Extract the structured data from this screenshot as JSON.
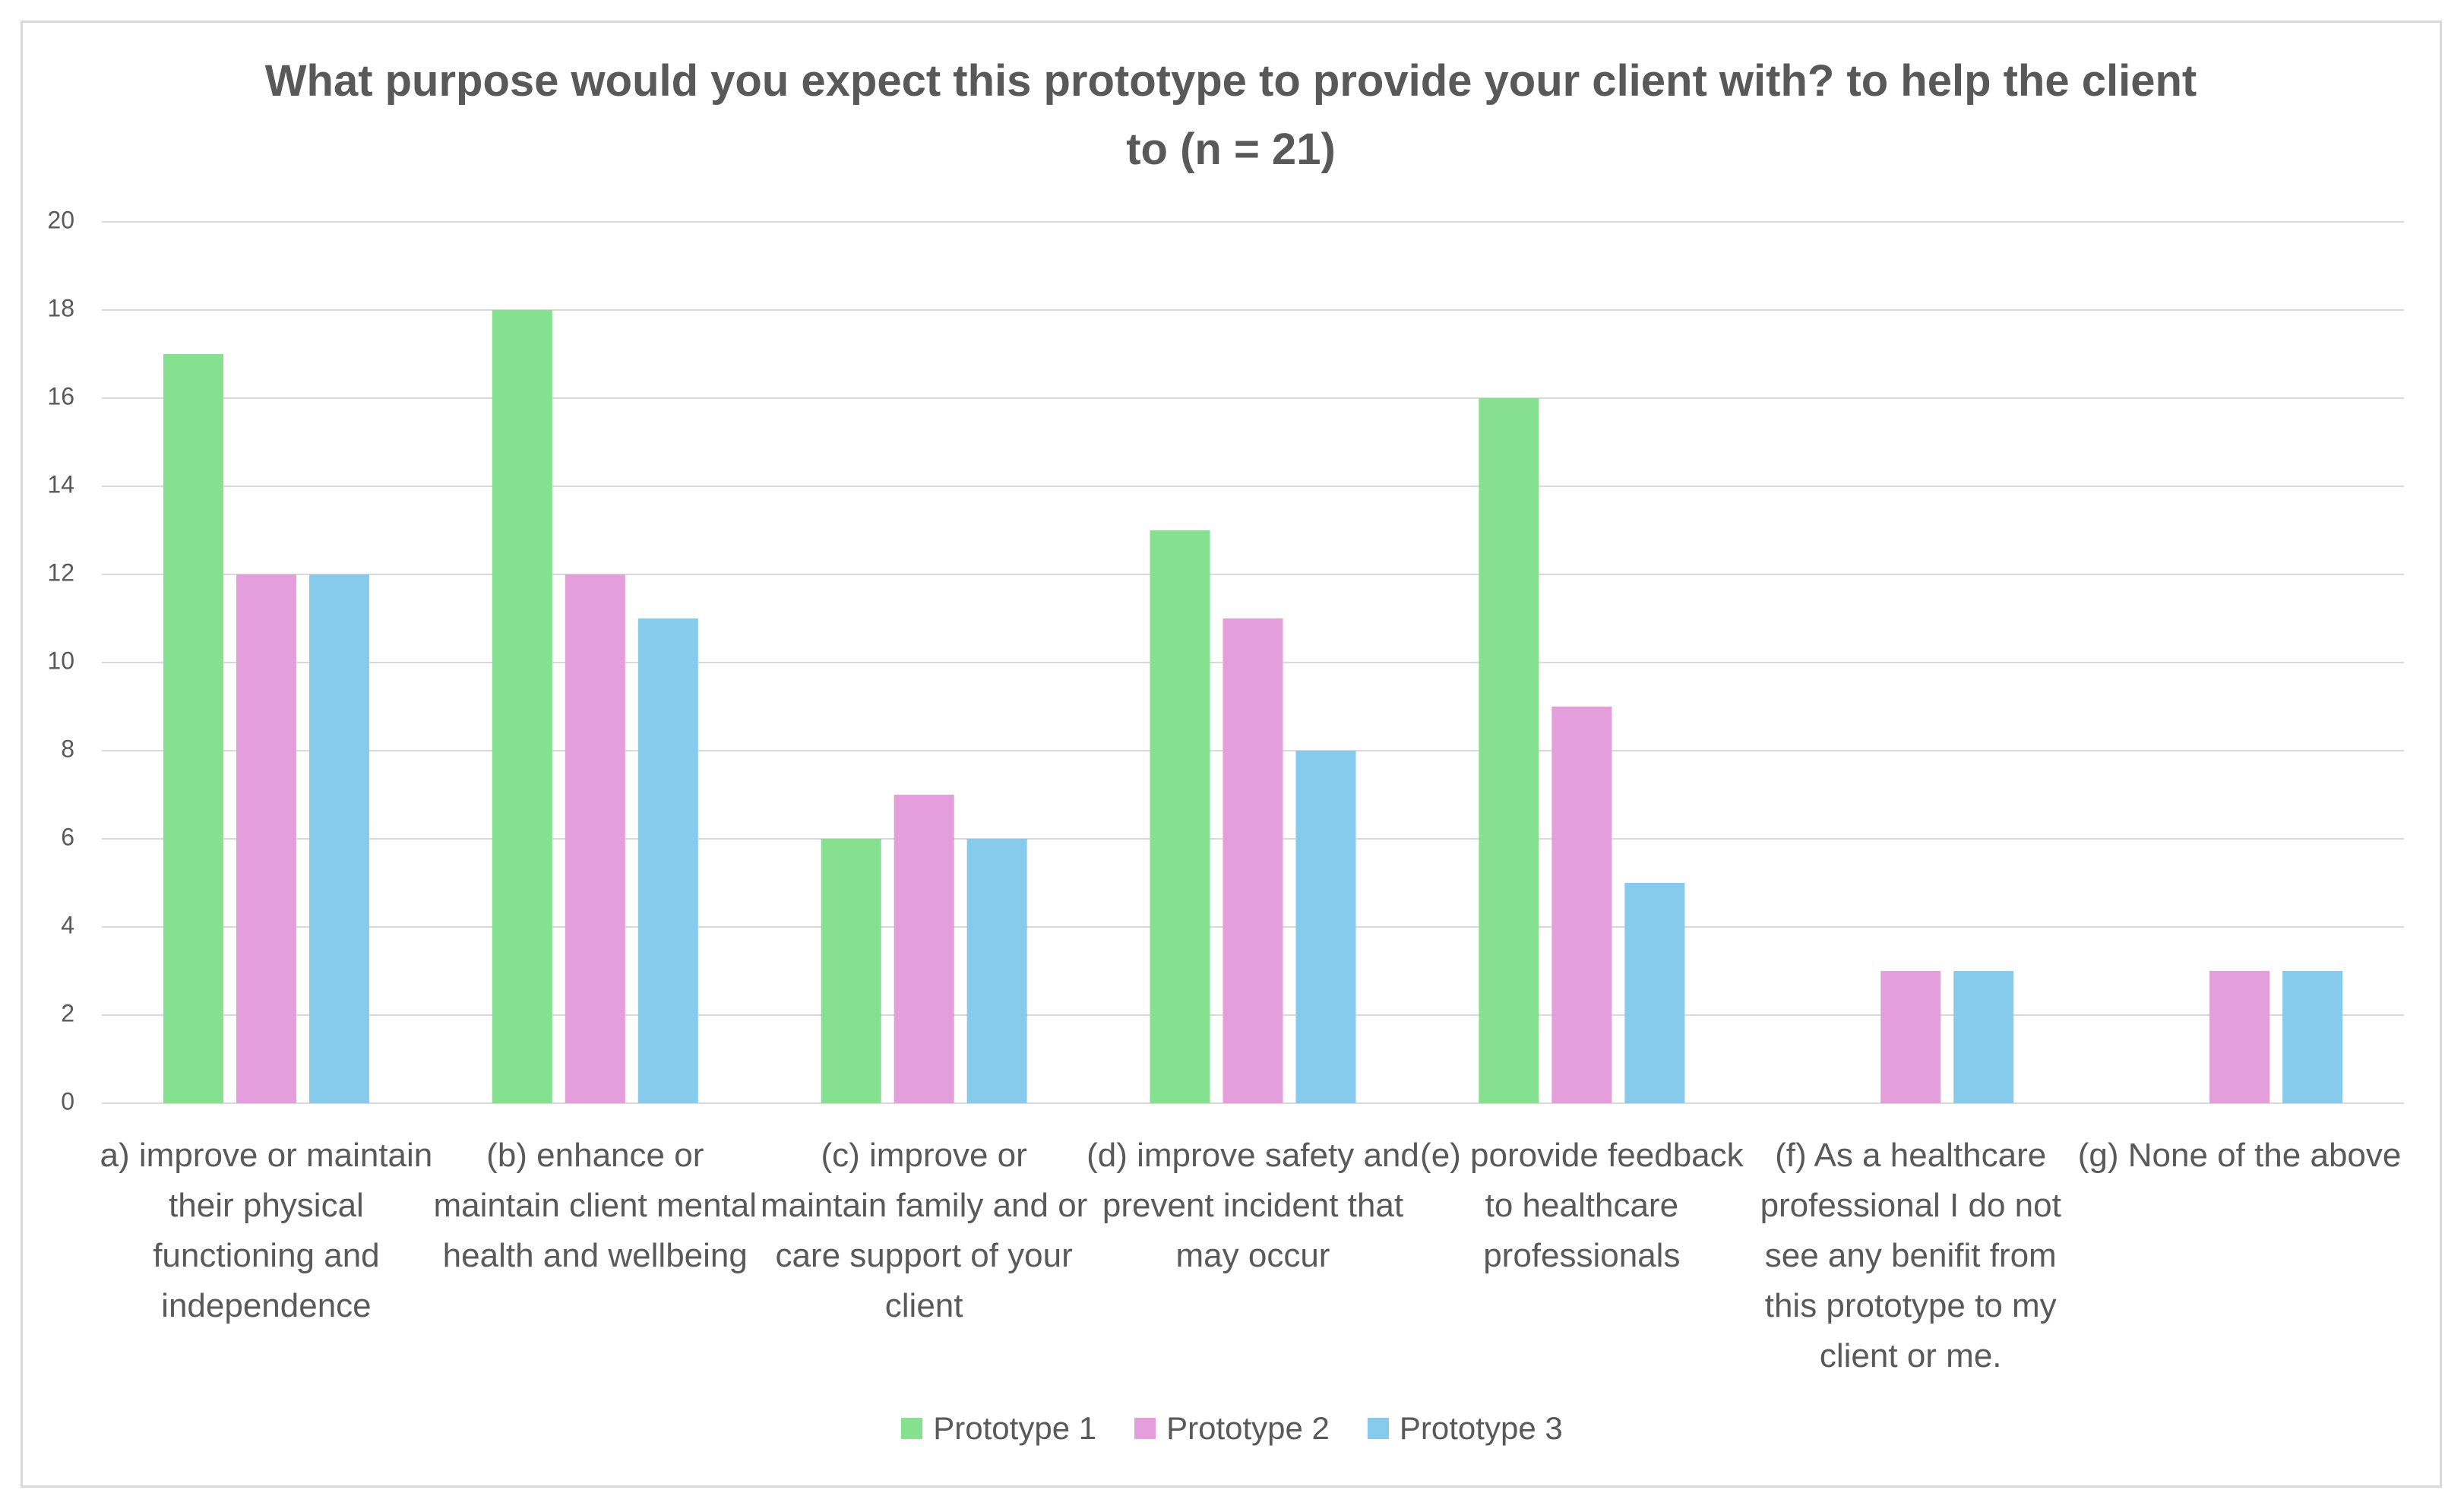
{
  "chart_data": {
    "type": "bar",
    "title": "What purpose would you expect this prototype to provide your client with? to help the client to (n = 21)",
    "categories": [
      "a)  improve or maintain their physical functioning and independence",
      "(b) enhance or maintain client mental health and wellbeing",
      "(c) improve or maintain family and or care support of your client",
      "(d) improve safety and prevent incident that may occur",
      "(e) porovide feedback to healthcare professionals",
      "(f) As a healthcare professional I do not see any benifit from this prototype to my client or me.",
      "(g) None of the above"
    ],
    "series": [
      {
        "name": "Prototype 1",
        "color": "#85e08f",
        "values": [
          17,
          18,
          6,
          13,
          16,
          0,
          0
        ]
      },
      {
        "name": "Prototype 2",
        "color": "#e49edb",
        "values": [
          12,
          12,
          7,
          11,
          9,
          3,
          3
        ]
      },
      {
        "name": "Prototype 3",
        "color": "#86cbeb",
        "values": [
          12,
          11,
          6,
          8,
          5,
          3,
          3
        ]
      }
    ],
    "ylim": [
      0,
      20
    ],
    "yticks": [
      0,
      2,
      4,
      6,
      8,
      10,
      12,
      14,
      16,
      18,
      20
    ],
    "grid": true,
    "legend": "bottom"
  }
}
